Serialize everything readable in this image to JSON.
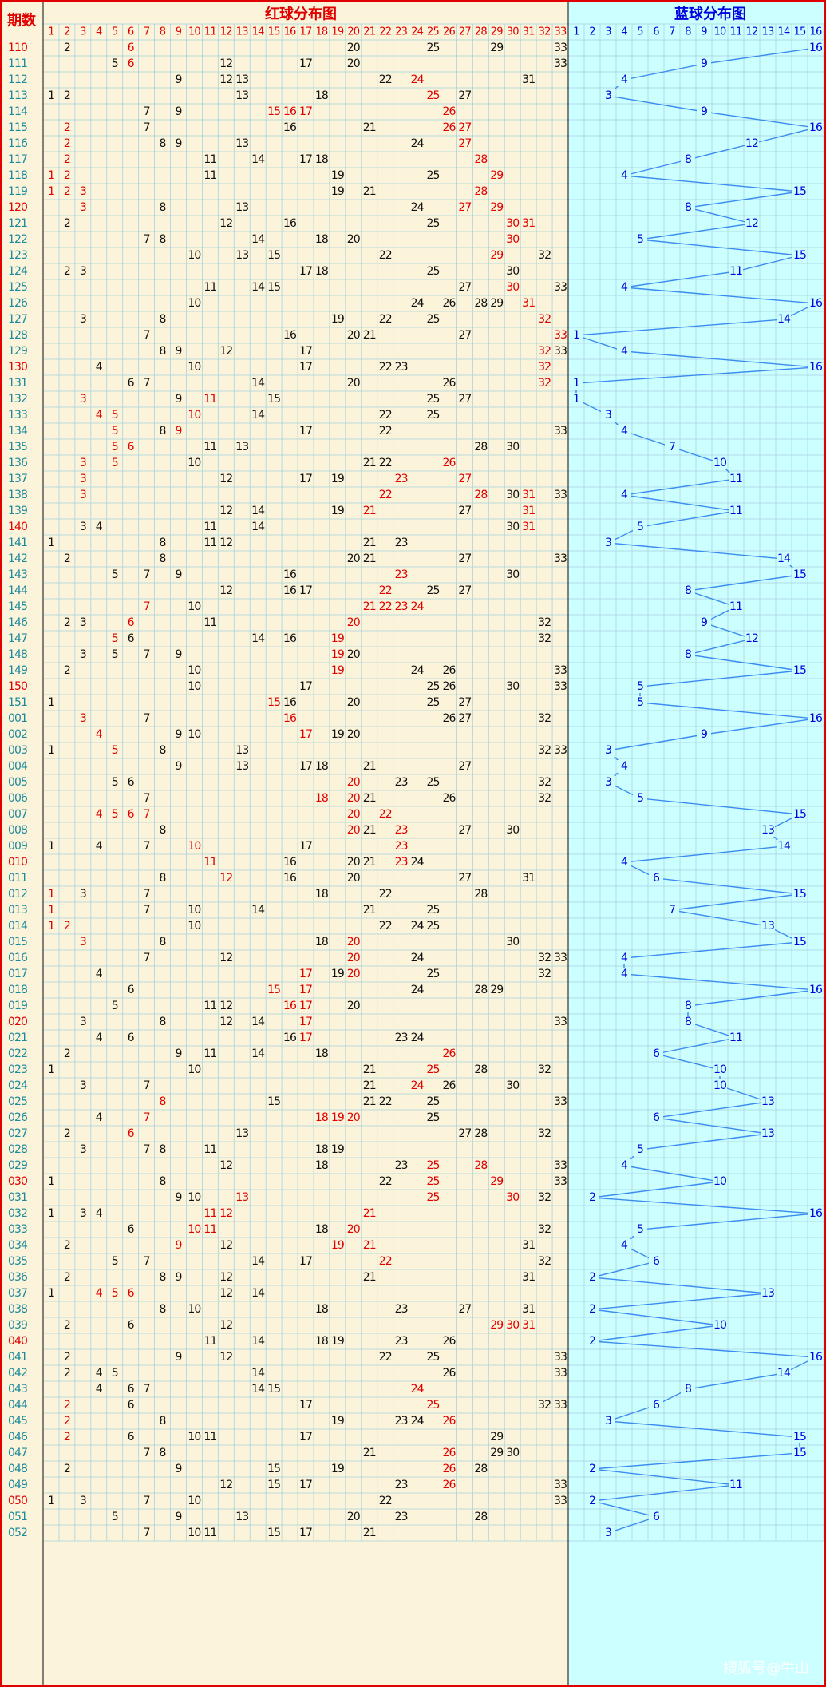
{
  "header": {
    "label": "期数",
    "red_title": "红球分布图",
    "blue_title": "蓝球分布图",
    "red_columns": [
      1,
      2,
      3,
      4,
      5,
      6,
      7,
      8,
      9,
      10,
      11,
      12,
      13,
      14,
      15,
      16,
      17,
      18,
      19,
      20,
      21,
      22,
      23,
      24,
      25,
      26,
      27,
      28,
      29,
      30,
      31,
      32,
      33
    ],
    "blue_columns": [
      1,
      2,
      3,
      4,
      5,
      6,
      7,
      8,
      9,
      10,
      11,
      12,
      13,
      14,
      15,
      16
    ]
  },
  "rows": [
    {
      "period": "110",
      "red": [
        2,
        6,
        20,
        25,
        29,
        33
      ],
      "hl": [
        1
      ],
      "blue": 16
    },
    {
      "period": "111",
      "red": [
        5,
        6,
        12,
        17,
        20,
        33
      ],
      "hl": [
        1
      ],
      "blue": 9
    },
    {
      "period": "112",
      "red": [
        9,
        12,
        13,
        22,
        24,
        31
      ],
      "hl": [
        4
      ],
      "blue": 4
    },
    {
      "period": "113",
      "red": [
        1,
        2,
        13,
        18,
        25,
        27
      ],
      "hl": [
        4
      ],
      "blue": 3
    },
    {
      "period": "114",
      "red": [
        7,
        9,
        15,
        16,
        17,
        26
      ],
      "hl": [
        2,
        3,
        4,
        5
      ],
      "blue": 9
    },
    {
      "period": "115",
      "red": [
        2,
        7,
        16,
        21,
        26,
        27
      ],
      "hl": [
        0,
        4,
        5
      ],
      "blue": 16
    },
    {
      "period": "116",
      "red": [
        2,
        8,
        9,
        13,
        24,
        27
      ],
      "hl": [
        0,
        5
      ],
      "blue": 12
    },
    {
      "period": "117",
      "red": [
        2,
        11,
        14,
        17,
        18,
        28
      ],
      "hl": [
        0,
        5
      ],
      "blue": 8
    },
    {
      "period": "118",
      "red": [
        1,
        2,
        11,
        19,
        25,
        29
      ],
      "hl": [
        0,
        1,
        5
      ],
      "blue": 4
    },
    {
      "period": "119",
      "red": [
        1,
        2,
        3,
        19,
        21,
        28
      ],
      "hl": [
        0,
        1,
        2,
        5
      ],
      "blue": 15
    },
    {
      "period": "120",
      "red": [
        3,
        8,
        13,
        24,
        27,
        29
      ],
      "hl": [
        0,
        4,
        5
      ],
      "blue": 8
    },
    {
      "period": "121",
      "red": [
        2,
        12,
        16,
        25,
        30,
        31
      ],
      "hl": [
        4,
        5
      ],
      "blue": 12
    },
    {
      "period": "122",
      "red": [
        7,
        8,
        14,
        18,
        20,
        30
      ],
      "hl": [
        5
      ],
      "blue": 5
    },
    {
      "period": "123",
      "red": [
        10,
        13,
        15,
        22,
        29,
        32
      ],
      "hl": [
        4
      ],
      "blue": 15
    },
    {
      "period": "124",
      "red": [
        2,
        3,
        17,
        18,
        25,
        30
      ],
      "hl": [],
      "blue": 11
    },
    {
      "period": "125",
      "red": [
        11,
        14,
        15,
        27,
        30,
        33
      ],
      "hl": [
        4
      ],
      "blue": 4
    },
    {
      "period": "126",
      "red": [
        10,
        24,
        26,
        28,
        29,
        31
      ],
      "hl": [
        5
      ],
      "blue": 16
    },
    {
      "period": "127",
      "red": [
        3,
        8,
        19,
        22,
        25,
        32
      ],
      "hl": [
        5
      ],
      "blue": 14
    },
    {
      "period": "128",
      "red": [
        7,
        16,
        20,
        21,
        27,
        33
      ],
      "hl": [
        5
      ],
      "blue": 1
    },
    {
      "period": "129",
      "red": [
        8,
        9,
        12,
        17,
        32,
        33
      ],
      "hl": [
        4
      ],
      "blue": 4
    },
    {
      "period": "130",
      "red": [
        4,
        10,
        17,
        22,
        23,
        32
      ],
      "hl": [
        5
      ],
      "blue": 16
    },
    {
      "period": "131",
      "red": [
        6,
        7,
        14,
        20,
        26,
        32
      ],
      "hl": [
        5
      ],
      "blue": 1
    },
    {
      "period": "132",
      "red": [
        3,
        9,
        11,
        15,
        25,
        27
      ],
      "hl": [
        0,
        2
      ],
      "blue": 1
    },
    {
      "period": "133",
      "red": [
        4,
        5,
        10,
        14,
        22,
        25
      ],
      "hl": [
        0,
        1,
        2
      ],
      "blue": 3
    },
    {
      "period": "134",
      "red": [
        5,
        8,
        9,
        17,
        22,
        33
      ],
      "hl": [
        0,
        2
      ],
      "blue": 4
    },
    {
      "period": "135",
      "red": [
        5,
        6,
        11,
        13,
        28,
        30
      ],
      "hl": [
        0,
        1
      ],
      "blue": 7
    },
    {
      "period": "136",
      "red": [
        3,
        5,
        10,
        21,
        22,
        26
      ],
      "hl": [
        0,
        1,
        5
      ],
      "blue": 10
    },
    {
      "period": "137",
      "red": [
        3,
        12,
        17,
        19,
        23,
        27
      ],
      "hl": [
        0,
        4,
        5
      ],
      "blue": 11
    },
    {
      "period": "138",
      "red": [
        3,
        22,
        28,
        30,
        31,
        33
      ],
      "hl": [
        0,
        1,
        2,
        4
      ],
      "blue": 4
    },
    {
      "period": "139",
      "red": [
        12,
        14,
        19,
        21,
        27,
        31
      ],
      "hl": [
        3,
        5
      ],
      "blue": 11
    },
    {
      "period": "140",
      "red": [
        3,
        4,
        11,
        14,
        30,
        31
      ],
      "hl": [
        5
      ],
      "blue": 5
    },
    {
      "period": "141",
      "red": [
        1,
        8,
        11,
        12,
        21,
        23
      ],
      "hl": [],
      "blue": 3
    },
    {
      "period": "142",
      "red": [
        2,
        8,
        20,
        21,
        27,
        33
      ],
      "hl": [],
      "blue": 14
    },
    {
      "period": "143",
      "red": [
        5,
        7,
        9,
        16,
        23,
        30
      ],
      "hl": [
        4
      ],
      "blue": 15
    },
    {
      "period": "144",
      "red": [
        12,
        16,
        17,
        22,
        25,
        27
      ],
      "hl": [
        3
      ],
      "blue": 8
    },
    {
      "period": "145",
      "red": [
        7,
        10,
        21,
        22,
        23,
        24
      ],
      "hl": [
        0,
        2,
        3,
        4,
        5
      ],
      "blue": 11
    },
    {
      "period": "146",
      "red": [
        2,
        3,
        6,
        11,
        20,
        32
      ],
      "hl": [
        2,
        4
      ],
      "blue": 9
    },
    {
      "period": "147",
      "red": [
        5,
        6,
        14,
        16,
        19,
        32
      ],
      "hl": [
        0,
        4
      ],
      "blue": 12
    },
    {
      "period": "148",
      "red": [
        3,
        5,
        7,
        9,
        19,
        20
      ],
      "hl": [
        4
      ],
      "blue": 8
    },
    {
      "period": "149",
      "red": [
        2,
        10,
        19,
        24,
        26,
        33
      ],
      "hl": [
        2
      ],
      "blue": 15
    },
    {
      "period": "150",
      "red": [
        10,
        17,
        25,
        26,
        30,
        33
      ],
      "hl": [],
      "blue": 5
    },
    {
      "period": "151",
      "red": [
        1,
        15,
        16,
        20,
        25,
        27
      ],
      "hl": [
        1
      ],
      "blue": 5
    },
    {
      "period": "001",
      "red": [
        3,
        7,
        16,
        26,
        27,
        32
      ],
      "hl": [
        0,
        2
      ],
      "blue": 16
    },
    {
      "period": "002",
      "red": [
        4,
        9,
        10,
        17,
        19,
        20
      ],
      "hl": [
        0,
        3
      ],
      "blue": 9
    },
    {
      "period": "003",
      "red": [
        1,
        5,
        8,
        13,
        32,
        33
      ],
      "hl": [
        1
      ],
      "blue": 3
    },
    {
      "period": "004",
      "red": [
        9,
        13,
        17,
        18,
        21,
        27
      ],
      "hl": [],
      "blue": 4
    },
    {
      "period": "005",
      "red": [
        5,
        6,
        20,
        23,
        25,
        32
      ],
      "hl": [
        2
      ],
      "blue": 3
    },
    {
      "period": "006",
      "red": [
        7,
        18,
        20,
        21,
        26,
        32
      ],
      "hl": [
        1,
        2
      ],
      "blue": 5
    },
    {
      "period": "007",
      "red": [
        4,
        5,
        6,
        7,
        20,
        22
      ],
      "hl": [
        0,
        1,
        2,
        3,
        4,
        5
      ],
      "blue": 15
    },
    {
      "period": "008",
      "red": [
        8,
        20,
        21,
        23,
        27,
        30
      ],
      "hl": [
        1,
        3
      ],
      "blue": 13
    },
    {
      "period": "009",
      "red": [
        1,
        4,
        7,
        10,
        17,
        23
      ],
      "hl": [
        3,
        5
      ],
      "blue": 14
    },
    {
      "period": "010",
      "red": [
        11,
        16,
        20,
        21,
        23,
        24
      ],
      "hl": [
        0,
        4
      ],
      "blue": 4
    },
    {
      "period": "011",
      "red": [
        8,
        12,
        16,
        20,
        27,
        31
      ],
      "hl": [
        1
      ],
      "blue": 6
    },
    {
      "period": "012",
      "red": [
        1,
        3,
        7,
        18,
        22,
        28
      ],
      "hl": [
        0
      ],
      "blue": 15
    },
    {
      "period": "013",
      "red": [
        1,
        7,
        10,
        14,
        21,
        25
      ],
      "hl": [
        0
      ],
      "blue": 7
    },
    {
      "period": "014",
      "red": [
        1,
        2,
        10,
        22,
        24,
        25
      ],
      "hl": [
        0,
        1
      ],
      "blue": 13
    },
    {
      "period": "015",
      "red": [
        3,
        8,
        18,
        20,
        30
      ],
      "hl": [
        0,
        3
      ],
      "blue": 15
    },
    {
      "period": "016",
      "red": [
        7,
        12,
        20,
        24,
        32,
        33
      ],
      "hl": [
        2
      ],
      "blue": 4
    },
    {
      "period": "017",
      "red": [
        4,
        17,
        19,
        20,
        25,
        32
      ],
      "hl": [
        1,
        3
      ],
      "blue": 4
    },
    {
      "period": "018",
      "red": [
        6,
        15,
        17,
        24,
        28,
        29
      ],
      "hl": [
        1,
        2
      ],
      "blue": 16
    },
    {
      "period": "019",
      "red": [
        5,
        11,
        12,
        16,
        17,
        20
      ],
      "hl": [
        3,
        4
      ],
      "blue": 8
    },
    {
      "period": "020",
      "red": [
        3,
        8,
        12,
        14,
        17,
        33
      ],
      "hl": [
        4
      ],
      "blue": 8
    },
    {
      "period": "021",
      "red": [
        4,
        6,
        16,
        17,
        23,
        24
      ],
      "hl": [
        3
      ],
      "blue": 11
    },
    {
      "period": "022",
      "red": [
        2,
        9,
        11,
        14,
        18,
        26
      ],
      "hl": [
        5
      ],
      "blue": 6
    },
    {
      "period": "023",
      "red": [
        1,
        10,
        21,
        25,
        28,
        32
      ],
      "hl": [
        3
      ],
      "blue": 10
    },
    {
      "period": "024",
      "red": [
        3,
        7,
        21,
        24,
        26,
        30
      ],
      "hl": [
        3
      ],
      "blue": 10
    },
    {
      "period": "025",
      "red": [
        8,
        15,
        21,
        22,
        25,
        33
      ],
      "hl": [
        0
      ],
      "blue": 13
    },
    {
      "period": "026",
      "red": [
        4,
        7,
        18,
        19,
        20,
        25
      ],
      "hl": [
        1,
        2,
        3,
        4
      ],
      "blue": 6
    },
    {
      "period": "027",
      "red": [
        2,
        6,
        13,
        27,
        28,
        32
      ],
      "hl": [
        1
      ],
      "blue": 13
    },
    {
      "period": "028",
      "red": [
        3,
        7,
        8,
        11,
        18,
        19
      ],
      "hl": [],
      "blue": 5
    },
    {
      "period": "029",
      "red": [
        12,
        18,
        23,
        25,
        28,
        33
      ],
      "hl": [
        3,
        4
      ],
      "blue": 4
    },
    {
      "period": "030",
      "red": [
        1,
        8,
        22,
        25,
        29,
        33
      ],
      "hl": [
        3,
        4
      ],
      "blue": 10
    },
    {
      "period": "031",
      "red": [
        9,
        10,
        13,
        25,
        30,
        32
      ],
      "hl": [
        2,
        3,
        4
      ],
      "blue": 2
    },
    {
      "period": "032",
      "red": [
        1,
        3,
        4,
        11,
        12,
        21
      ],
      "hl": [
        3,
        4,
        5
      ],
      "blue": 16
    },
    {
      "period": "033",
      "red": [
        6,
        10,
        11,
        18,
        20,
        32
      ],
      "hl": [
        1,
        2,
        4
      ],
      "blue": 5
    },
    {
      "period": "034",
      "red": [
        2,
        9,
        12,
        19,
        21,
        31
      ],
      "hl": [
        1,
        3,
        4
      ],
      "blue": 4
    },
    {
      "period": "035",
      "red": [
        5,
        7,
        14,
        17,
        22,
        32
      ],
      "hl": [
        4
      ],
      "blue": 6
    },
    {
      "period": "036",
      "red": [
        2,
        8,
        9,
        12,
        21,
        31
      ],
      "hl": [],
      "blue": 2
    },
    {
      "period": "037",
      "red": [
        1,
        4,
        5,
        6,
        12,
        14
      ],
      "hl": [
        1,
        2,
        3
      ],
      "blue": 13
    },
    {
      "period": "038",
      "red": [
        8,
        10,
        18,
        23,
        27,
        31
      ],
      "hl": [],
      "blue": 2
    },
    {
      "period": "039",
      "red": [
        2,
        6,
        12,
        29,
        30,
        31
      ],
      "hl": [
        3,
        4,
        5
      ],
      "blue": 10
    },
    {
      "period": "040",
      "red": [
        11,
        14,
        18,
        19,
        23,
        26
      ],
      "hl": [],
      "blue": 2
    },
    {
      "period": "041",
      "red": [
        2,
        9,
        12,
        22,
        25,
        33
      ],
      "hl": [],
      "blue": 16
    },
    {
      "period": "042",
      "red": [
        2,
        4,
        5,
        14,
        26,
        33
      ],
      "hl": [],
      "blue": 14
    },
    {
      "period": "043",
      "red": [
        4,
        6,
        7,
        14,
        15,
        24
      ],
      "hl": [
        5
      ],
      "blue": 8
    },
    {
      "period": "044",
      "red": [
        2,
        6,
        17,
        25,
        32,
        33
      ],
      "hl": [
        0,
        3
      ],
      "blue": 6
    },
    {
      "period": "045",
      "red": [
        2,
        8,
        19,
        23,
        24,
        26
      ],
      "hl": [
        0,
        5
      ],
      "blue": 3
    },
    {
      "period": "046",
      "red": [
        2,
        6,
        10,
        11,
        17,
        29
      ],
      "hl": [
        0
      ],
      "blue": 15
    },
    {
      "period": "047",
      "red": [
        7,
        8,
        21,
        26,
        29,
        30
      ],
      "hl": [
        3
      ],
      "blue": 15
    },
    {
      "period": "048",
      "red": [
        2,
        9,
        15,
        19,
        26,
        28
      ],
      "hl": [
        4
      ],
      "blue": 2
    },
    {
      "period": "049",
      "red": [
        12,
        15,
        17,
        23,
        26,
        33
      ],
      "hl": [
        4
      ],
      "blue": 11
    },
    {
      "period": "050",
      "red": [
        1,
        3,
        7,
        10,
        22,
        33
      ],
      "hl": [],
      "blue": 2
    },
    {
      "period": "051",
      "red": [
        5,
        9,
        13,
        20,
        23,
        28
      ],
      "hl": [],
      "blue": 6
    },
    {
      "period": "052",
      "red": [
        7,
        10,
        11,
        15,
        17,
        21
      ],
      "hl": [],
      "blue": 3
    }
  ],
  "watermark": "搜狐号@牛山"
}
